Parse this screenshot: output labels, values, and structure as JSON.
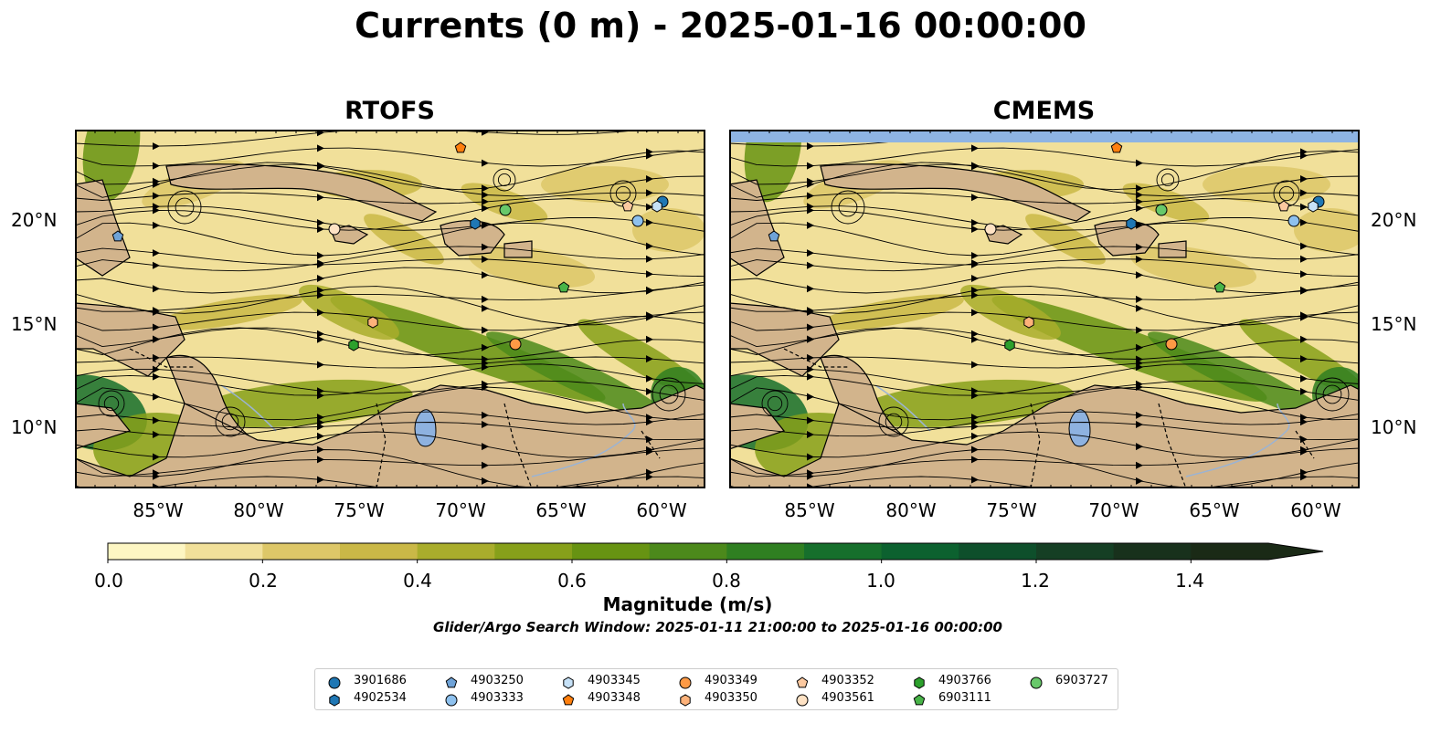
{
  "title": "Currents (0 m) - 2025-01-16 00:00:00",
  "panels": [
    {
      "title": "RTOFS"
    },
    {
      "title": "CMEMS"
    }
  ],
  "axes": {
    "lat_labels": [
      "20°N",
      "15°N",
      "10°N"
    ],
    "lon_labels": [
      "85°W",
      "80°W",
      "75°W",
      "70°W",
      "65°W",
      "60°W"
    ]
  },
  "colorbar": {
    "label": "Magnitude (m/s)",
    "ticks": [
      "0.0",
      "0.2",
      "0.4",
      "0.6",
      "0.8",
      "1.0",
      "1.2",
      "1.4"
    ],
    "range": [
      0,
      1.5
    ],
    "extend": "max",
    "colors": [
      "#fdf6c3",
      "#f1e09a",
      "#ddc768",
      "#cab847",
      "#a9ad2c",
      "#87a01a",
      "#679312",
      "#4c891b",
      "#2f7f21",
      "#166f2c",
      "#0c612f",
      "#0e4f2b",
      "#153f24",
      "#18311c",
      "#1a2a16"
    ]
  },
  "search_window": "Glider/Argo Search Window: 2025-01-11 21:00:00 to 2025-01-16 00:00:00",
  "colors": {
    "land": "#d2b48c",
    "lake": "#8eb2e0",
    "river": "#9ab3d4"
  },
  "legend": [
    {
      "id": "3901686",
      "marker": "circle",
      "color": "#1f77b4"
    },
    {
      "id": "4902534",
      "marker": "hexagon",
      "color": "#1f77b4"
    },
    {
      "id": "4903250",
      "marker": "pentagon",
      "color": "#6fa3d8"
    },
    {
      "id": "4903333",
      "marker": "circle",
      "color": "#8ec1ee"
    },
    {
      "id": "4903345",
      "marker": "hexagon",
      "color": "#c6e1f7"
    },
    {
      "id": "4903348",
      "marker": "pentagon",
      "color": "#ff7f0e"
    },
    {
      "id": "4903349",
      "marker": "circle",
      "color": "#fd9a45"
    },
    {
      "id": "4903350",
      "marker": "hexagon",
      "color": "#fdb27a"
    },
    {
      "id": "4903352",
      "marker": "pentagon",
      "color": "#fcc9a0"
    },
    {
      "id": "4903561",
      "marker": "circle",
      "color": "#fee2c4"
    },
    {
      "id": "4903766",
      "marker": "hexagon",
      "color": "#2ca02c"
    },
    {
      "id": "6903111",
      "marker": "pentagon",
      "color": "#48b448"
    },
    {
      "id": "6903727",
      "marker": "circle",
      "color": "#68c86a"
    }
  ]
}
